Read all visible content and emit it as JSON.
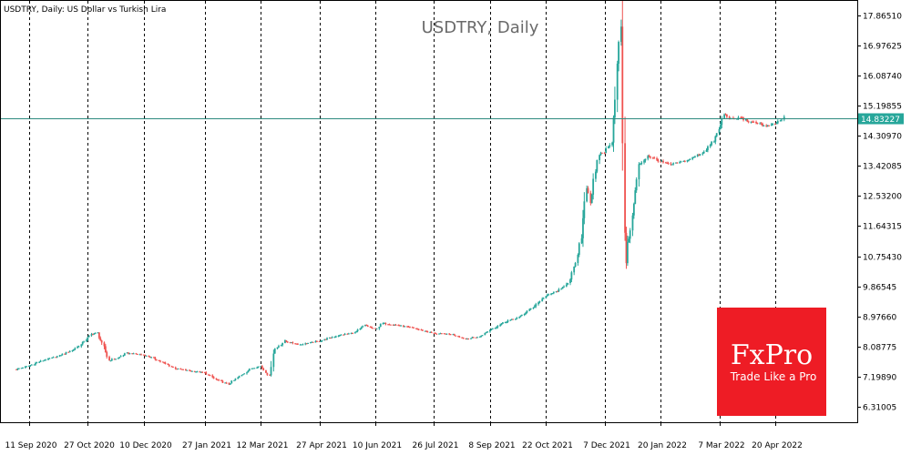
{
  "header": {
    "text": "USDTRY, Daily:  US Dollar vs Turkish Lira"
  },
  "chart_data": {
    "type": "line",
    "title": "USDTRY, Daily",
    "xlabel": "",
    "ylabel": "",
    "ylim": [
      5.86,
      18.31
    ],
    "grid": "vertical dashed",
    "current_price": "14.83227",
    "current_value": 14.83227,
    "y_ticks": [
      {
        "label": "17.86510",
        "value": 17.8651
      },
      {
        "label": "16.97625",
        "value": 16.97625
      },
      {
        "label": "16.08740",
        "value": 16.0874
      },
      {
        "label": "15.19855",
        "value": 15.19855
      },
      {
        "label": "14.30970",
        "value": 14.3097
      },
      {
        "label": "13.42085",
        "value": 13.42085
      },
      {
        "label": "12.53200",
        "value": 12.532
      },
      {
        "label": "11.64315",
        "value": 11.64315
      },
      {
        "label": "10.75430",
        "value": 10.7543
      },
      {
        "label": "9.86545",
        "value": 9.86545
      },
      {
        "label": "8.97660",
        "value": 8.9766
      },
      {
        "label": "8.08775",
        "value": 8.08775
      },
      {
        "label": "7.19890",
        "value": 7.1989
      },
      {
        "label": "6.31005",
        "value": 6.31005
      }
    ],
    "x_ticks": [
      {
        "label": "11 Sep 2020",
        "date": "2020-09-11"
      },
      {
        "label": "27 Oct 2020",
        "date": "2020-10-27"
      },
      {
        "label": "10 Dec 2020",
        "date": "2020-12-10"
      },
      {
        "label": "27 Jan 2021",
        "date": "2021-01-27"
      },
      {
        "label": "12 Mar 2021",
        "date": "2021-03-12"
      },
      {
        "label": "27 Apr 2021",
        "date": "2021-04-27"
      },
      {
        "label": "10 Jun 2021",
        "date": "2021-06-10"
      },
      {
        "label": "26 Jul 2021",
        "date": "2021-07-26"
      },
      {
        "label": "8 Sep 2021",
        "date": "2021-09-08"
      },
      {
        "label": "22 Oct 2021",
        "date": "2021-10-22"
      },
      {
        "label": "7 Dec 2021",
        "date": "2021-12-07"
      },
      {
        "label": "20 Jan 2022",
        "date": "2022-01-20"
      },
      {
        "label": "7 Mar 2022",
        "date": "2022-03-07"
      },
      {
        "label": "20 Apr 2022",
        "date": "2022-04-20"
      }
    ],
    "series": [
      {
        "type": "line",
        "points": [
          {
            "date": "2020-09-01",
            "close": 7.42
          },
          {
            "date": "2020-09-11",
            "close": 7.52
          },
          {
            "date": "2020-09-22",
            "close": 7.68
          },
          {
            "date": "2020-10-05",
            "close": 7.82
          },
          {
            "date": "2020-10-15",
            "close": 7.98
          },
          {
            "date": "2020-10-22",
            "close": 8.15
          },
          {
            "date": "2020-10-30",
            "close": 8.45
          },
          {
            "date": "2020-11-04",
            "close": 8.5
          },
          {
            "date": "2020-11-09",
            "close": 8.05
          },
          {
            "date": "2020-11-13",
            "close": 7.68
          },
          {
            "date": "2020-11-20",
            "close": 7.75
          },
          {
            "date": "2020-11-27",
            "close": 7.9
          },
          {
            "date": "2020-12-10",
            "close": 7.85
          },
          {
            "date": "2020-12-18",
            "close": 7.75
          },
          {
            "date": "2021-01-04",
            "close": 7.45
          },
          {
            "date": "2021-01-15",
            "close": 7.38
          },
          {
            "date": "2021-01-27",
            "close": 7.32
          },
          {
            "date": "2021-02-05",
            "close": 7.12
          },
          {
            "date": "2021-02-15",
            "close": 6.98
          },
          {
            "date": "2021-02-25",
            "close": 7.25
          },
          {
            "date": "2021-03-05",
            "close": 7.45
          },
          {
            "date": "2021-03-12",
            "close": 7.52
          },
          {
            "date": "2021-03-19",
            "close": 7.22
          },
          {
            "date": "2021-03-22",
            "close": 7.98
          },
          {
            "date": "2021-03-31",
            "close": 8.25
          },
          {
            "date": "2021-04-12",
            "close": 8.15
          },
          {
            "date": "2021-04-27",
            "close": 8.25
          },
          {
            "date": "2021-05-12",
            "close": 8.42
          },
          {
            "date": "2021-05-25",
            "close": 8.5
          },
          {
            "date": "2021-06-02",
            "close": 8.72
          },
          {
            "date": "2021-06-10",
            "close": 8.6
          },
          {
            "date": "2021-06-16",
            "close": 8.78
          },
          {
            "date": "2021-06-28",
            "close": 8.72
          },
          {
            "date": "2021-07-12",
            "close": 8.62
          },
          {
            "date": "2021-07-26",
            "close": 8.48
          },
          {
            "date": "2021-08-10",
            "close": 8.45
          },
          {
            "date": "2021-08-20",
            "close": 8.32
          },
          {
            "date": "2021-08-31",
            "close": 8.38
          },
          {
            "date": "2021-09-08",
            "close": 8.58
          },
          {
            "date": "2021-09-20",
            "close": 8.82
          },
          {
            "date": "2021-10-01",
            "close": 8.95
          },
          {
            "date": "2021-10-12",
            "close": 9.25
          },
          {
            "date": "2021-10-22",
            "close": 9.58
          },
          {
            "date": "2021-11-03",
            "close": 9.78
          },
          {
            "date": "2021-11-10",
            "close": 10.05
          },
          {
            "date": "2021-11-16",
            "close": 10.75
          },
          {
            "date": "2021-11-19",
            "close": 11.35
          },
          {
            "date": "2021-11-23",
            "close": 12.92
          },
          {
            "date": "2021-11-26",
            "close": 12.35
          },
          {
            "date": "2021-12-03",
            "close": 13.78
          },
          {
            "date": "2021-12-07",
            "close": 13.82
          },
          {
            "date": "2021-12-13",
            "close": 14.15
          },
          {
            "date": "2021-12-17",
            "close": 16.3
          },
          {
            "date": "2021-12-20",
            "close": 17.6
          },
          {
            "date": "2021-12-21",
            "close": 12.8
          },
          {
            "date": "2021-12-23",
            "close": 11.75
          },
          {
            "date": "2021-12-24",
            "close": 10.72
          },
          {
            "date": "2021-12-29",
            "close": 11.9
          },
          {
            "date": "2022-01-03",
            "close": 13.4
          },
          {
            "date": "2022-01-10",
            "close": 13.72
          },
          {
            "date": "2022-01-20",
            "close": 13.55
          },
          {
            "date": "2022-01-28",
            "close": 13.45
          },
          {
            "date": "2022-02-10",
            "close": 13.58
          },
          {
            "date": "2022-02-22",
            "close": 13.8
          },
          {
            "date": "2022-03-03",
            "close": 14.15
          },
          {
            "date": "2022-03-07",
            "close": 14.48
          },
          {
            "date": "2022-03-11",
            "close": 14.95
          },
          {
            "date": "2022-03-18",
            "close": 14.78
          },
          {
            "date": "2022-03-24",
            "close": 14.85
          },
          {
            "date": "2022-04-01",
            "close": 14.7
          },
          {
            "date": "2022-04-08",
            "close": 14.68
          },
          {
            "date": "2022-04-13",
            "close": 14.58
          },
          {
            "date": "2022-04-20",
            "close": 14.65
          },
          {
            "date": "2022-04-27",
            "close": 14.83
          }
        ]
      }
    ]
  },
  "logo": {
    "brand": "FxPro",
    "tagline": "Trade Like a Pro"
  },
  "colors": {
    "background": "#ffffff",
    "axis": "#000000",
    "grid": "#000000",
    "candle_up": "#26a69a",
    "candle_down": "#ef5350",
    "price_line": "#2e8b80",
    "price_badge": "#26a69a",
    "logo_bg": "#ee1c25",
    "title": "#6a6a6a"
  }
}
